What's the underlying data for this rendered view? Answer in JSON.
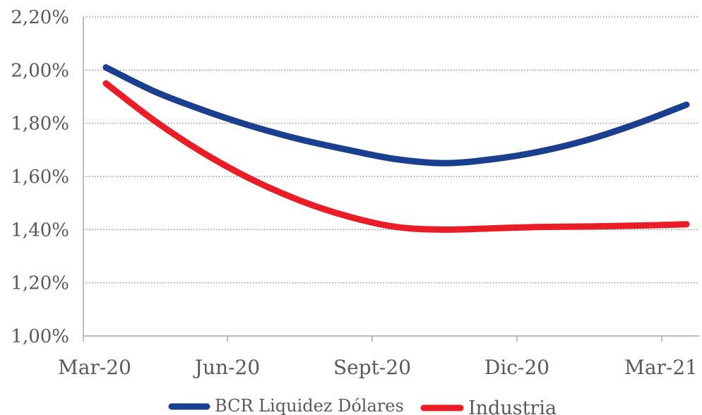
{
  "chart_data": {
    "type": "line",
    "title": "",
    "xlabel": "",
    "ylabel": "",
    "categories": [
      "Mar-20",
      "Jun-20",
      "Sept-20",
      "Dic-20",
      "Mar-21"
    ],
    "y_ticks": [
      "1,00%",
      "1,20%",
      "1,40%",
      "1,60%",
      "1,80%",
      "2,00%",
      "2,20%"
    ],
    "ylim": [
      1.0,
      2.2
    ],
    "grid": "horizontal dotted",
    "legend_position": "bottom",
    "series": [
      {
        "name": "BCR Liquidez Dólares",
        "color": "#1b3f8f",
        "x": [
          "Mar-20",
          "Apr-20",
          "May-20",
          "Jun-20",
          "Jul-20",
          "Aug-20",
          "Sep-20",
          "Oct-20",
          "Nov-20",
          "Dec-20",
          "Jan-21",
          "Feb-21",
          "Mar-21"
        ],
        "values": [
          2.01,
          1.92,
          1.85,
          1.79,
          1.74,
          1.7,
          1.665,
          1.65,
          1.665,
          1.695,
          1.74,
          1.8,
          1.87
        ]
      },
      {
        "name": "Industria",
        "color": "#ea1d26",
        "x": [
          "Mar-20",
          "Apr-20",
          "May-20",
          "Jun-20",
          "Jul-20",
          "Aug-20",
          "Sep-20",
          "Oct-20",
          "Nov-20",
          "Dec-20",
          "Jan-21",
          "Feb-21",
          "Mar-21"
        ],
        "values": [
          1.95,
          1.81,
          1.69,
          1.59,
          1.51,
          1.45,
          1.41,
          1.4,
          1.405,
          1.41,
          1.412,
          1.415,
          1.42
        ]
      }
    ]
  }
}
